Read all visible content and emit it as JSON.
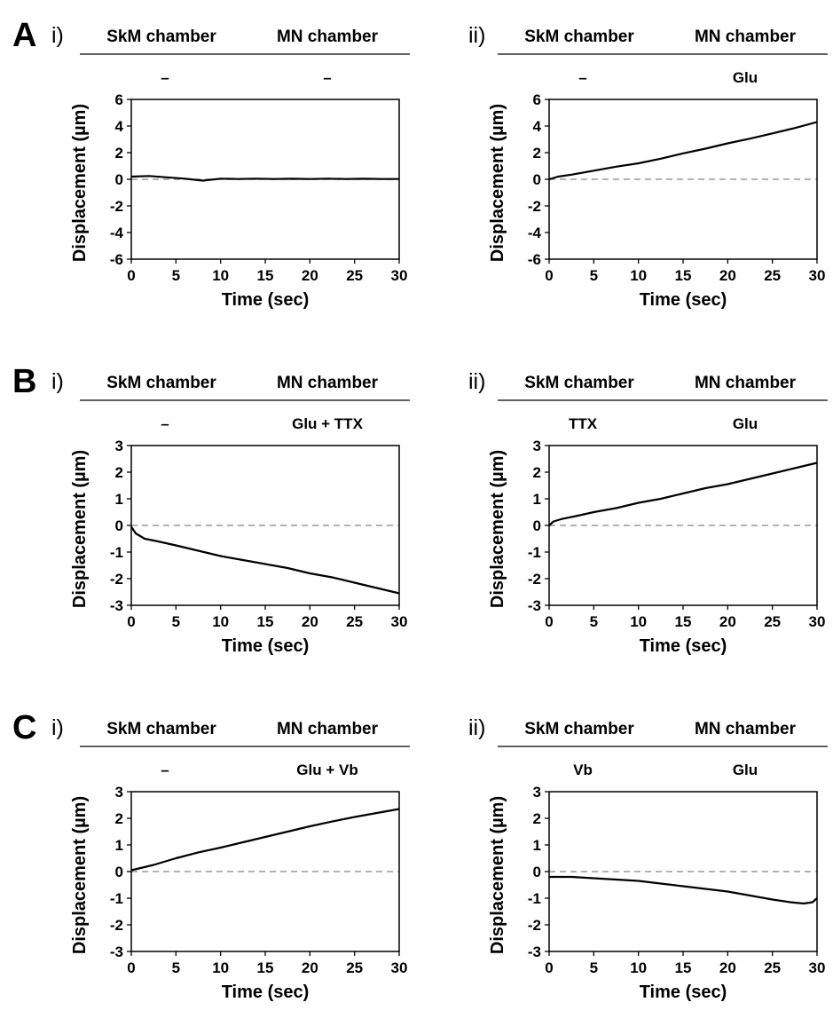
{
  "figure": {
    "column_headers": {
      "left": "SkM chamber",
      "right": "MN chamber"
    },
    "panels": [
      {
        "letter": "A",
        "subpanels": [
          {
            "label": "i)",
            "skm_treatment": "–",
            "mn_treatment": "–"
          },
          {
            "label": "ii)",
            "skm_treatment": "–",
            "mn_treatment": "Glu"
          }
        ]
      },
      {
        "letter": "B",
        "subpanels": [
          {
            "label": "i)",
            "skm_treatment": "–",
            "mn_treatment": "Glu + TTX"
          },
          {
            "label": "ii)",
            "skm_treatment": "TTX",
            "mn_treatment": "Glu"
          }
        ]
      },
      {
        "letter": "C",
        "subpanels": [
          {
            "label": "i)",
            "skm_treatment": "–",
            "mn_treatment": "Glu + Vb"
          },
          {
            "label": "ii)",
            "skm_treatment": "Vb",
            "mn_treatment": "Glu"
          }
        ]
      }
    ]
  },
  "chart_data": [
    {
      "id": "A-i",
      "type": "line",
      "xlabel": "Time (sec)",
      "ylabel": "Displacement (µm)",
      "xlim": [
        0,
        30
      ],
      "ylim": [
        -6,
        6
      ],
      "xticks": [
        0,
        5,
        10,
        15,
        20,
        25,
        30
      ],
      "yticks": [
        6,
        4,
        2,
        0,
        -2,
        -4,
        -6
      ],
      "reference_line": {
        "y": 0,
        "style": "dashed",
        "color": "#999999"
      },
      "series": [
        {
          "x": [
            0,
            2,
            4,
            6,
            8,
            10,
            12,
            14,
            16,
            18,
            20,
            22,
            24,
            26,
            28,
            30
          ],
          "y": [
            0.2,
            0.25,
            0.15,
            0.05,
            -0.1,
            0.05,
            0.02,
            0.05,
            0.02,
            0.04,
            0.02,
            0.05,
            0.02,
            0.04,
            0.02,
            0.02
          ]
        }
      ]
    },
    {
      "id": "A-ii",
      "type": "line",
      "xlabel": "Time (sec)",
      "ylabel": "Displacement (µm)",
      "xlim": [
        0,
        30
      ],
      "ylim": [
        -6,
        6
      ],
      "xticks": [
        0,
        5,
        10,
        15,
        20,
        25,
        30
      ],
      "yticks": [
        6,
        4,
        2,
        0,
        -2,
        -4,
        -6
      ],
      "reference_line": {
        "y": 0,
        "style": "dashed",
        "color": "#999999"
      },
      "series": [
        {
          "x": [
            0,
            1,
            2.5,
            5,
            7.5,
            10,
            12.5,
            15,
            17.5,
            20,
            22.5,
            25,
            27.5,
            30
          ],
          "y": [
            0.0,
            0.2,
            0.35,
            0.65,
            0.95,
            1.2,
            1.55,
            1.95,
            2.3,
            2.7,
            3.05,
            3.45,
            3.85,
            4.3
          ]
        }
      ]
    },
    {
      "id": "B-i",
      "type": "line",
      "xlabel": "Time (sec)",
      "ylabel": "Displacement (µm)",
      "xlim": [
        0,
        30
      ],
      "ylim": [
        -3,
        3
      ],
      "xticks": [
        0,
        5,
        10,
        15,
        20,
        25,
        30
      ],
      "yticks": [
        3,
        2,
        1,
        0,
        -1,
        -2,
        -3
      ],
      "reference_line": {
        "y": 0,
        "style": "dashed",
        "color": "#999999"
      },
      "series": [
        {
          "x": [
            0,
            0.5,
            1.5,
            3,
            5,
            7.5,
            10,
            12.5,
            15,
            17.5,
            20,
            22.5,
            25,
            27.5,
            30
          ],
          "y": [
            -0.05,
            -0.3,
            -0.5,
            -0.6,
            -0.75,
            -0.95,
            -1.15,
            -1.3,
            -1.45,
            -1.6,
            -1.8,
            -1.95,
            -2.15,
            -2.35,
            -2.55
          ]
        }
      ]
    },
    {
      "id": "B-ii",
      "type": "line",
      "xlabel": "Time (sec)",
      "ylabel": "Displacement (µm)",
      "xlim": [
        0,
        30
      ],
      "ylim": [
        -3,
        3
      ],
      "xticks": [
        0,
        5,
        10,
        15,
        20,
        25,
        30
      ],
      "yticks": [
        3,
        2,
        1,
        0,
        -1,
        -2,
        -3
      ],
      "reference_line": {
        "y": 0,
        "style": "dashed",
        "color": "#999999"
      },
      "series": [
        {
          "x": [
            0,
            0.5,
            1.5,
            3,
            5,
            7.5,
            10,
            12.5,
            15,
            17.5,
            20,
            22.5,
            25,
            27.5,
            30
          ],
          "y": [
            0.0,
            0.15,
            0.25,
            0.35,
            0.5,
            0.65,
            0.85,
            1.0,
            1.2,
            1.4,
            1.55,
            1.75,
            1.95,
            2.15,
            2.35
          ]
        }
      ]
    },
    {
      "id": "C-i",
      "type": "line",
      "xlabel": "Time (sec)",
      "ylabel": "Displacement (µm)",
      "xlim": [
        0,
        30
      ],
      "ylim": [
        -3,
        3
      ],
      "xticks": [
        0,
        5,
        10,
        15,
        20,
        25,
        30
      ],
      "yticks": [
        3,
        2,
        1,
        0,
        -1,
        -2,
        -3
      ],
      "reference_line": {
        "y": 0,
        "style": "dashed",
        "color": "#999999"
      },
      "series": [
        {
          "x": [
            0,
            2.5,
            5,
            7.5,
            10,
            12.5,
            15,
            17.5,
            20,
            22.5,
            25,
            27.5,
            30
          ],
          "y": [
            0.05,
            0.25,
            0.5,
            0.72,
            0.9,
            1.1,
            1.3,
            1.5,
            1.7,
            1.88,
            2.05,
            2.2,
            2.35
          ]
        }
      ]
    },
    {
      "id": "C-ii",
      "type": "line",
      "xlabel": "Time (sec)",
      "ylabel": "Displacement (µm)",
      "xlim": [
        0,
        30
      ],
      "ylim": [
        -3,
        3
      ],
      "xticks": [
        0,
        5,
        10,
        15,
        20,
        25,
        30
      ],
      "yticks": [
        3,
        2,
        1,
        0,
        -1,
        -2,
        -3
      ],
      "reference_line": {
        "y": 0,
        "style": "dashed",
        "color": "#999999"
      },
      "series": [
        {
          "x": [
            0,
            2.5,
            5,
            7.5,
            10,
            12.5,
            15,
            17.5,
            20,
            22.5,
            25,
            27,
            28.5,
            29.5,
            30
          ],
          "y": [
            -0.2,
            -0.2,
            -0.25,
            -0.3,
            -0.35,
            -0.45,
            -0.55,
            -0.65,
            -0.75,
            -0.9,
            -1.05,
            -1.15,
            -1.2,
            -1.15,
            -1.0
          ]
        }
      ]
    }
  ]
}
